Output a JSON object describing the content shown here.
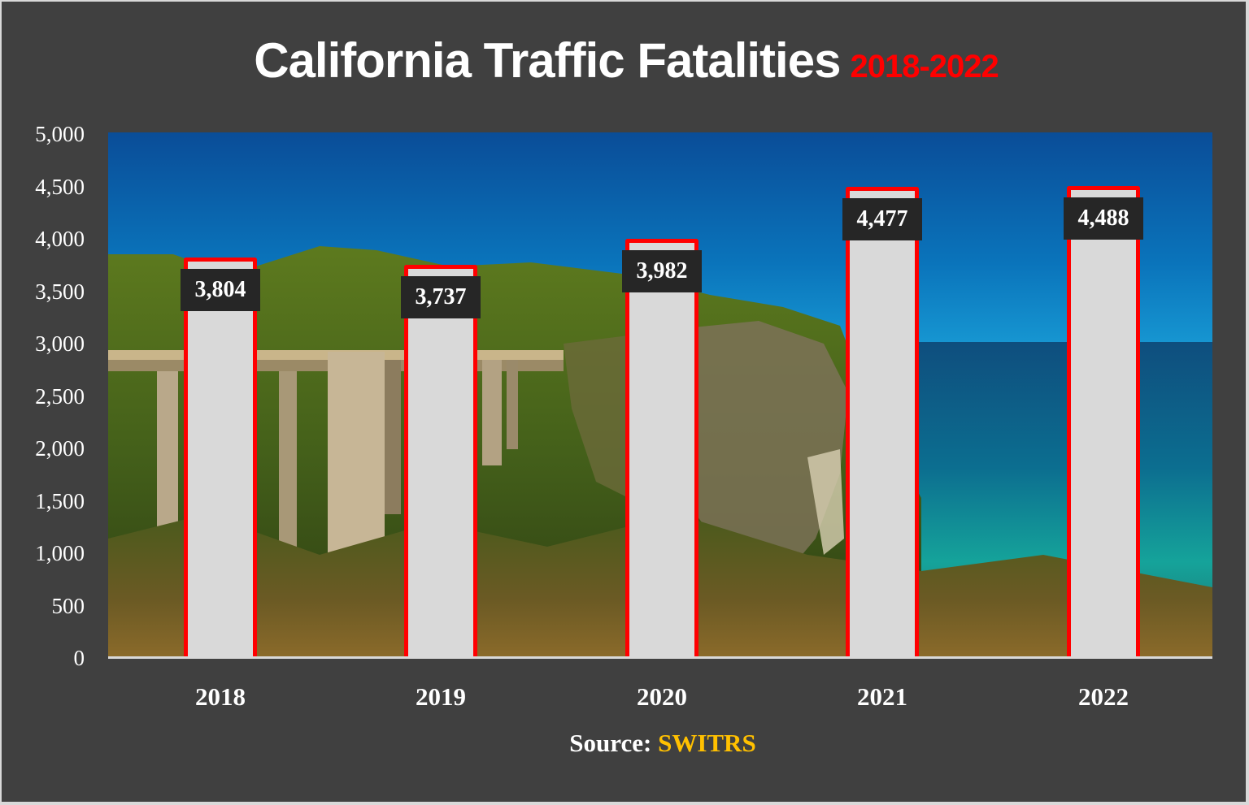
{
  "title": {
    "main": "California Traffic Fatalities",
    "sub": "2018-2022"
  },
  "source": {
    "label": "Source:",
    "value": "SWITRS"
  },
  "colors": {
    "background": "#404040",
    "bar_fill": "#d9d9d9",
    "bar_outline": "#ff0000",
    "label_bg": "#262626",
    "subtitle": "#ff0000",
    "source_highlight": "#ffc000"
  },
  "y_ticks": [
    "5,000",
    "4,500",
    "4,000",
    "3,500",
    "3,000",
    "2,500",
    "2,000",
    "1,500",
    "1,000",
    "500",
    "0"
  ],
  "bars": [
    {
      "year": "2018",
      "value": 3804,
      "label": "3,804"
    },
    {
      "year": "2019",
      "value": 3737,
      "label": "3,737"
    },
    {
      "year": "2020",
      "value": 3982,
      "label": "3,982"
    },
    {
      "year": "2021",
      "value": 4477,
      "label": "4,477"
    },
    {
      "year": "2022",
      "value": 4488,
      "label": "4,488"
    }
  ],
  "chart_data": {
    "type": "bar",
    "title": "California Traffic Fatalities 2018-2022",
    "categories": [
      "2018",
      "2019",
      "2020",
      "2021",
      "2022"
    ],
    "values": [
      3804,
      3737,
      3982,
      4477,
      4488
    ],
    "data_labels": [
      "3,804",
      "3,737",
      "3,982",
      "4,477",
      "4,488"
    ],
    "xlabel": "",
    "ylabel": "",
    "ylim": [
      0,
      5000
    ],
    "yticks": [
      0,
      500,
      1000,
      1500,
      2000,
      2500,
      3000,
      3500,
      4000,
      4500,
      5000
    ],
    "grid": false,
    "legend": "none",
    "annotation": "Source: SWITRS",
    "background": "photo of Bixby Creek Bridge and Big Sur coastline"
  }
}
